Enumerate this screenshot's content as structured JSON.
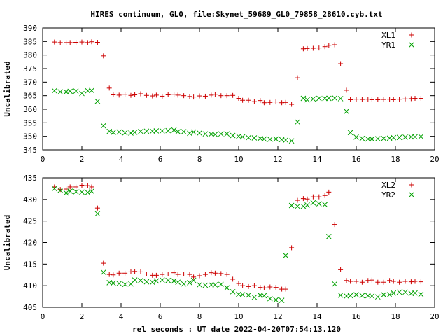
{
  "title": "HIRES continuum, GL0, file:Skynet_59689_GL0_79858_28610.cyb.txt",
  "xlabel": "rel seconds : UT date 2022-04-20T07:54:13.120",
  "chart_data": [
    {
      "type": "scatter",
      "ylabel": "Uncalibrated",
      "xlim": [
        0,
        20
      ],
      "ylim": [
        345,
        390
      ],
      "xticks": [
        0,
        2,
        4,
        6,
        8,
        10,
        12,
        14,
        16,
        18,
        20
      ],
      "yticks": [
        345,
        350,
        355,
        360,
        365,
        370,
        375,
        380,
        385,
        390
      ],
      "legend_position": "top-right",
      "series": [
        {
          "name": "XL1",
          "marker": "plus",
          "color": "#cc0000",
          "x": [
            0.6,
            0.9,
            1.2,
            1.4,
            1.7,
            2.0,
            2.3,
            2.5,
            2.8,
            3.1,
            3.4,
            3.6,
            3.9,
            4.2,
            4.5,
            4.7,
            5.0,
            5.3,
            5.6,
            5.8,
            6.1,
            6.4,
            6.7,
            6.9,
            7.2,
            7.5,
            7.7,
            8.0,
            8.3,
            8.6,
            8.8,
            9.1,
            9.4,
            9.7,
            10.0,
            10.2,
            10.5,
            10.8,
            11.1,
            11.3,
            11.6,
            11.9,
            12.2,
            12.4,
            12.7,
            13.0,
            13.3,
            13.5,
            13.8,
            14.1,
            14.4,
            14.6,
            14.9,
            15.2,
            15.5,
            15.7,
            16.0,
            16.3,
            16.6,
            16.8,
            17.1,
            17.4,
            17.7,
            17.9,
            18.2,
            18.5,
            18.8,
            19.0,
            19.3
          ],
          "y": [
            384.8,
            384.6,
            384.6,
            384.6,
            384.7,
            384.8,
            384.6,
            384.9,
            384.7,
            379.7,
            367.8,
            365.3,
            365.2,
            365.5,
            365.1,
            365.3,
            365.7,
            365.1,
            364.9,
            365.2,
            364.8,
            365.3,
            365.5,
            365.2,
            365.0,
            364.7,
            364.5,
            364.9,
            364.8,
            365.2,
            365.5,
            365.0,
            365.0,
            365.1,
            364.0,
            363.3,
            363.3,
            362.8,
            363.2,
            362.4,
            362.5,
            362.7,
            362.4,
            362.5,
            361.8,
            371.6,
            382.3,
            382.4,
            382.5,
            382.6,
            383.1,
            383.6,
            383.8,
            376.8,
            367.0,
            363.5,
            363.7,
            363.6,
            363.7,
            363.5,
            363.5,
            363.6,
            363.7,
            363.5,
            363.7,
            363.8,
            363.9,
            364.0,
            364.0
          ]
        },
        {
          "name": "YR1",
          "marker": "x",
          "color": "#00a000",
          "x": [
            0.6,
            0.9,
            1.2,
            1.4,
            1.7,
            2.0,
            2.3,
            2.5,
            2.8,
            3.1,
            3.4,
            3.6,
            3.9,
            4.2,
            4.5,
            4.7,
            5.0,
            5.3,
            5.6,
            5.8,
            6.1,
            6.4,
            6.7,
            6.9,
            7.2,
            7.5,
            7.7,
            8.0,
            8.3,
            8.6,
            8.8,
            9.1,
            9.4,
            9.7,
            10.0,
            10.2,
            10.5,
            10.8,
            11.1,
            11.3,
            11.6,
            11.9,
            12.2,
            12.4,
            12.7,
            13.0,
            13.3,
            13.5,
            13.8,
            14.1,
            14.4,
            14.6,
            14.9,
            15.2,
            15.5,
            15.7,
            16.0,
            16.3,
            16.6,
            16.8,
            17.1,
            17.4,
            17.7,
            17.9,
            18.2,
            18.5,
            18.8,
            19.0,
            19.3
          ],
          "y": [
            366.8,
            366.4,
            366.4,
            366.6,
            366.7,
            365.8,
            366.8,
            366.9,
            362.9,
            353.9,
            351.8,
            351.4,
            351.6,
            351.3,
            351.2,
            351.5,
            351.8,
            351.9,
            351.9,
            352.0,
            352.0,
            352.1,
            352.3,
            351.7,
            351.7,
            351.1,
            351.6,
            351.2,
            350.9,
            350.8,
            350.7,
            350.9,
            350.9,
            350.3,
            350.0,
            349.8,
            349.5,
            349.4,
            349.2,
            349.0,
            348.9,
            349.0,
            348.8,
            348.6,
            348.3,
            355.3,
            364.0,
            363.5,
            363.8,
            364.0,
            364.0,
            364.0,
            364.1,
            363.9,
            359.2,
            351.4,
            349.7,
            349.2,
            349.0,
            349.0,
            349.1,
            349.2,
            349.3,
            349.5,
            349.6,
            349.7,
            349.8,
            349.8,
            349.9
          ]
        }
      ]
    },
    {
      "type": "scatter",
      "ylabel": "Uncalibrated",
      "xlim": [
        0,
        20
      ],
      "ylim": [
        405,
        435
      ],
      "xticks": [
        0,
        2,
        4,
        6,
        8,
        10,
        12,
        14,
        16,
        18,
        20
      ],
      "yticks": [
        405,
        410,
        415,
        420,
        425,
        430,
        435
      ],
      "legend_position": "top-right",
      "series": [
        {
          "name": "XL2",
          "marker": "plus",
          "color": "#cc0000",
          "x": [
            0.6,
            0.9,
            1.2,
            1.4,
            1.7,
            2.0,
            2.3,
            2.5,
            2.8,
            3.1,
            3.4,
            3.6,
            3.9,
            4.2,
            4.5,
            4.7,
            5.0,
            5.3,
            5.6,
            5.8,
            6.1,
            6.4,
            6.7,
            6.9,
            7.2,
            7.5,
            7.7,
            8.0,
            8.3,
            8.6,
            8.8,
            9.1,
            9.4,
            9.7,
            10.0,
            10.2,
            10.5,
            10.8,
            11.1,
            11.3,
            11.6,
            11.9,
            12.2,
            12.4,
            12.7,
            13.0,
            13.3,
            13.5,
            13.8,
            14.1,
            14.4,
            14.6,
            14.9,
            15.2,
            15.5,
            15.7,
            16.0,
            16.3,
            16.6,
            16.8,
            17.1,
            17.4,
            17.7,
            17.9,
            18.2,
            18.5,
            18.8,
            19.0,
            19.3
          ],
          "y": [
            432.9,
            432.3,
            432.4,
            432.9,
            432.9,
            433.3,
            433.2,
            432.9,
            428.0,
            415.2,
            412.6,
            412.5,
            412.9,
            412.9,
            413.2,
            413.3,
            413.2,
            412.7,
            412.4,
            412.4,
            412.6,
            412.7,
            413.0,
            412.6,
            412.7,
            412.6,
            412.0,
            412.3,
            412.6,
            413.0,
            412.9,
            412.8,
            412.6,
            411.5,
            410.5,
            410.0,
            409.8,
            410.0,
            409.6,
            409.5,
            409.7,
            409.6,
            409.2,
            409.2,
            418.8,
            429.8,
            430.2,
            430.1,
            430.6,
            430.6,
            430.9,
            431.7,
            424.2,
            413.7,
            411.2,
            411.0,
            411.0,
            410.8,
            411.2,
            411.3,
            410.8,
            410.8,
            411.2,
            411.0,
            410.8,
            411.0,
            410.9,
            411.0,
            410.9
          ]
        },
        {
          "name": "YR2",
          "marker": "x",
          "color": "#00a000",
          "x": [
            0.6,
            0.9,
            1.2,
            1.4,
            1.7,
            2.0,
            2.3,
            2.5,
            2.8,
            3.1,
            3.4,
            3.6,
            3.9,
            4.2,
            4.5,
            4.7,
            5.0,
            5.3,
            5.6,
            5.8,
            6.1,
            6.4,
            6.7,
            6.9,
            7.2,
            7.5,
            7.7,
            8.0,
            8.3,
            8.6,
            8.8,
            9.1,
            9.4,
            9.7,
            10.0,
            10.2,
            10.5,
            10.8,
            11.1,
            11.3,
            11.6,
            11.9,
            12.2,
            12.4,
            12.7,
            13.0,
            13.3,
            13.5,
            13.8,
            14.1,
            14.4,
            14.6,
            14.9,
            15.2,
            15.5,
            15.7,
            16.0,
            16.3,
            16.6,
            16.8,
            17.1,
            17.4,
            17.7,
            17.9,
            18.2,
            18.5,
            18.8,
            19.0,
            19.3
          ],
          "y": [
            432.5,
            432.1,
            431.5,
            431.9,
            431.8,
            431.7,
            431.6,
            431.9,
            426.7,
            413.1,
            410.7,
            410.6,
            410.5,
            410.3,
            410.4,
            411.3,
            411.2,
            410.9,
            410.8,
            411.1,
            411.3,
            411.2,
            411.1,
            410.8,
            410.4,
            410.7,
            411.2,
            410.2,
            410.1,
            410.2,
            410.2,
            410.3,
            409.5,
            408.6,
            408.0,
            407.9,
            407.8,
            407.3,
            407.8,
            407.7,
            407.0,
            406.7,
            406.6,
            417.0,
            428.6,
            428.4,
            428.4,
            428.7,
            429.2,
            429.0,
            428.8,
            421.4,
            410.4,
            407.8,
            407.6,
            407.7,
            407.9,
            407.7,
            407.7,
            407.6,
            407.4,
            407.9,
            407.9,
            408.3,
            408.5,
            408.5,
            408.2,
            408.3,
            408.0
          ]
        }
      ]
    }
  ]
}
